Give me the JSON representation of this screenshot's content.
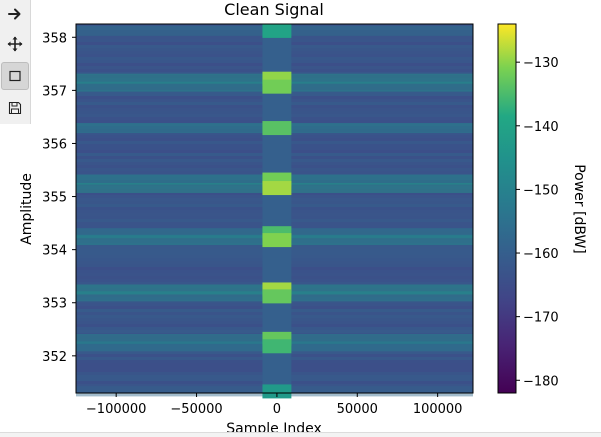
{
  "toolbar": {
    "buttons": [
      {
        "name": "forward-button",
        "icon": "arrow-right-icon",
        "active": false
      },
      {
        "name": "pan-button",
        "icon": "move-icon",
        "active": false
      },
      {
        "name": "zoom-rect-button",
        "icon": "rectangle-icon",
        "active": true
      },
      {
        "name": "save-button",
        "icon": "floppy-disk-icon",
        "active": false
      }
    ]
  },
  "chart_data": {
    "type": "heatmap",
    "title": "Clean Signal",
    "xlabel": "Sample Index",
    "ylabel": "Amplitude",
    "xlim": [
      -125000,
      122000
    ],
    "ylim": [
      351.3,
      358.25
    ],
    "xticks": [
      -100000,
      -50000,
      0,
      50000,
      100000
    ],
    "xtick_labels": [
      "−100000",
      "−50000",
      "0",
      "50000",
      "100000"
    ],
    "yticks": [
      352,
      353,
      354,
      355,
      356,
      357,
      358
    ],
    "ytick_labels": [
      "352",
      "353",
      "354",
      "355",
      "356",
      "357",
      "358"
    ],
    "colorbar": {
      "label": "Power [dBW]",
      "colormap": "viridis",
      "range": [
        -182,
        -124
      ],
      "ticks": [
        -180,
        -170,
        -160,
        -150,
        -140,
        -130
      ],
      "tick_labels": [
        "−180",
        "−170",
        "−160",
        "−150",
        "−140",
        "−130"
      ]
    },
    "background_power": -163,
    "center_band_x": [
      -9000,
      9000
    ],
    "bright_bands": [
      {
        "y": 358.12,
        "power": -140
      },
      {
        "y": 357.22,
        "power": -130
      },
      {
        "y": 357.07,
        "power": -132
      },
      {
        "y": 356.29,
        "power": -134
      },
      {
        "y": 355.32,
        "power": -132
      },
      {
        "y": 355.16,
        "power": -129
      },
      {
        "y": 354.31,
        "power": -135
      },
      {
        "y": 354.18,
        "power": -131
      },
      {
        "y": 353.25,
        "power": -129
      },
      {
        "y": 353.12,
        "power": -133
      },
      {
        "y": 352.32,
        "power": -133
      },
      {
        "y": 352.18,
        "power": -136
      },
      {
        "y": 351.33,
        "power": -143
      }
    ]
  }
}
